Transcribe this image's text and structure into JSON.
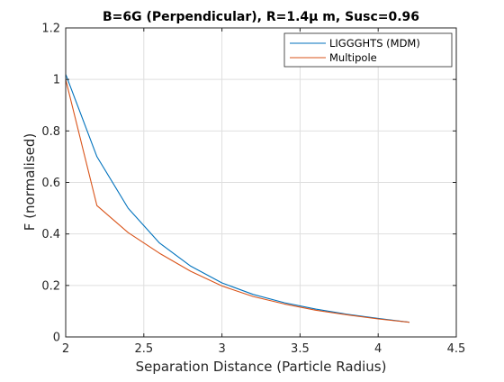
{
  "chart_data": {
    "type": "line",
    "title": "B=6G (Perpendicular), R=1.4μ m, Susc=0.96",
    "xlabel": "Separation Distance (Particle Radius)",
    "ylabel": "F (normalised)",
    "xlim": [
      2,
      4.5
    ],
    "ylim": [
      0,
      1.2
    ],
    "xticks": [
      2,
      2.5,
      3,
      3.5,
      4,
      4.5
    ],
    "xtick_labels": [
      "2",
      "2.5",
      "3",
      "3.5",
      "4",
      "4.5"
    ],
    "yticks": [
      0,
      0.2,
      0.4,
      0.6,
      0.8,
      1,
      1.2
    ],
    "ytick_labels": [
      "0",
      "0.2",
      "0.4",
      "0.6",
      "0.8",
      "1",
      "1.2"
    ],
    "grid": true,
    "legend_position": "top-right",
    "series": [
      {
        "name": "LIGGGHTS (MDM)",
        "color": "#0072BD",
        "x": [
          2.0,
          2.2,
          2.4,
          2.6,
          2.8,
          3.0,
          3.2,
          3.4,
          3.6,
          3.8,
          4.0,
          4.2
        ],
        "y": [
          1.02,
          0.7,
          0.5,
          0.365,
          0.275,
          0.21,
          0.165,
          0.133,
          0.108,
          0.088,
          0.072,
          0.057
        ]
      },
      {
        "name": "Multipole",
        "color": "#D95319",
        "x": [
          2.0,
          2.2,
          2.4,
          2.6,
          2.8,
          3.0,
          3.2,
          3.4,
          3.6,
          3.8,
          4.0,
          4.2
        ],
        "y": [
          1.0,
          0.51,
          0.405,
          0.325,
          0.255,
          0.198,
          0.157,
          0.128,
          0.104,
          0.086,
          0.07,
          0.057
        ]
      }
    ]
  }
}
